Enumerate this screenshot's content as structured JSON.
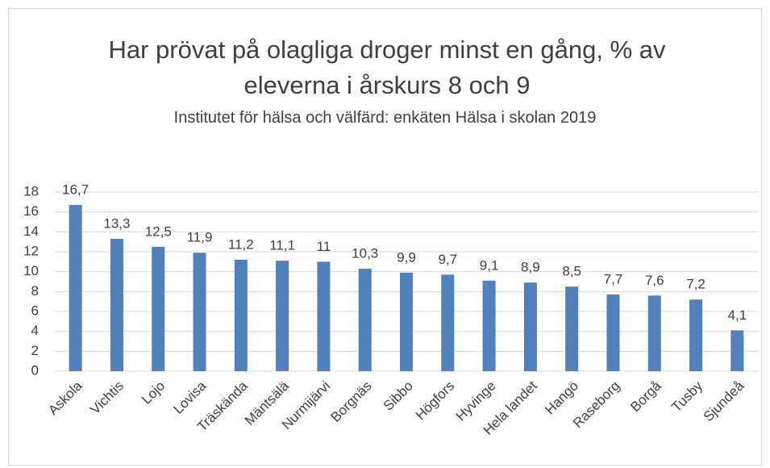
{
  "chart_data": {
    "type": "bar",
    "title": "Har prövat på olagliga droger minst en gång, % av eleverna i årskurs 8 och 9",
    "subtitle": "Institutet för hälsa och välfärd: enkäten Hälsa i skolan 2019",
    "categories": [
      "Askola",
      "Vichtis",
      "Lojo",
      "Lovisa",
      "Träskända",
      "Mäntsälä",
      "Nurmijärvi",
      "Borgnäs",
      "Sibbo",
      "Högfors",
      "Hyvinge",
      "Hela landet",
      "Hangö",
      "Raseborg",
      "Borgå",
      "Tusby",
      "Sjundeå"
    ],
    "values": [
      16.7,
      13.3,
      12.5,
      11.9,
      11.2,
      11.1,
      11,
      10.3,
      9.9,
      9.7,
      9.1,
      8.9,
      8.5,
      7.7,
      7.6,
      7.2,
      4.1
    ],
    "value_labels": [
      "16,7",
      "13,3",
      "12,5",
      "11,9",
      "11,2",
      "11,1",
      "11",
      "10,3",
      "9,9",
      "9,7",
      "9,1",
      "8,9",
      "8,5",
      "7,7",
      "7,6",
      "7,2",
      "4,1"
    ],
    "color": "#4f81bd",
    "ylim": [
      0,
      18
    ],
    "yticks": [
      0,
      2,
      4,
      6,
      8,
      10,
      12,
      14,
      16,
      18
    ],
    "grid": true
  }
}
